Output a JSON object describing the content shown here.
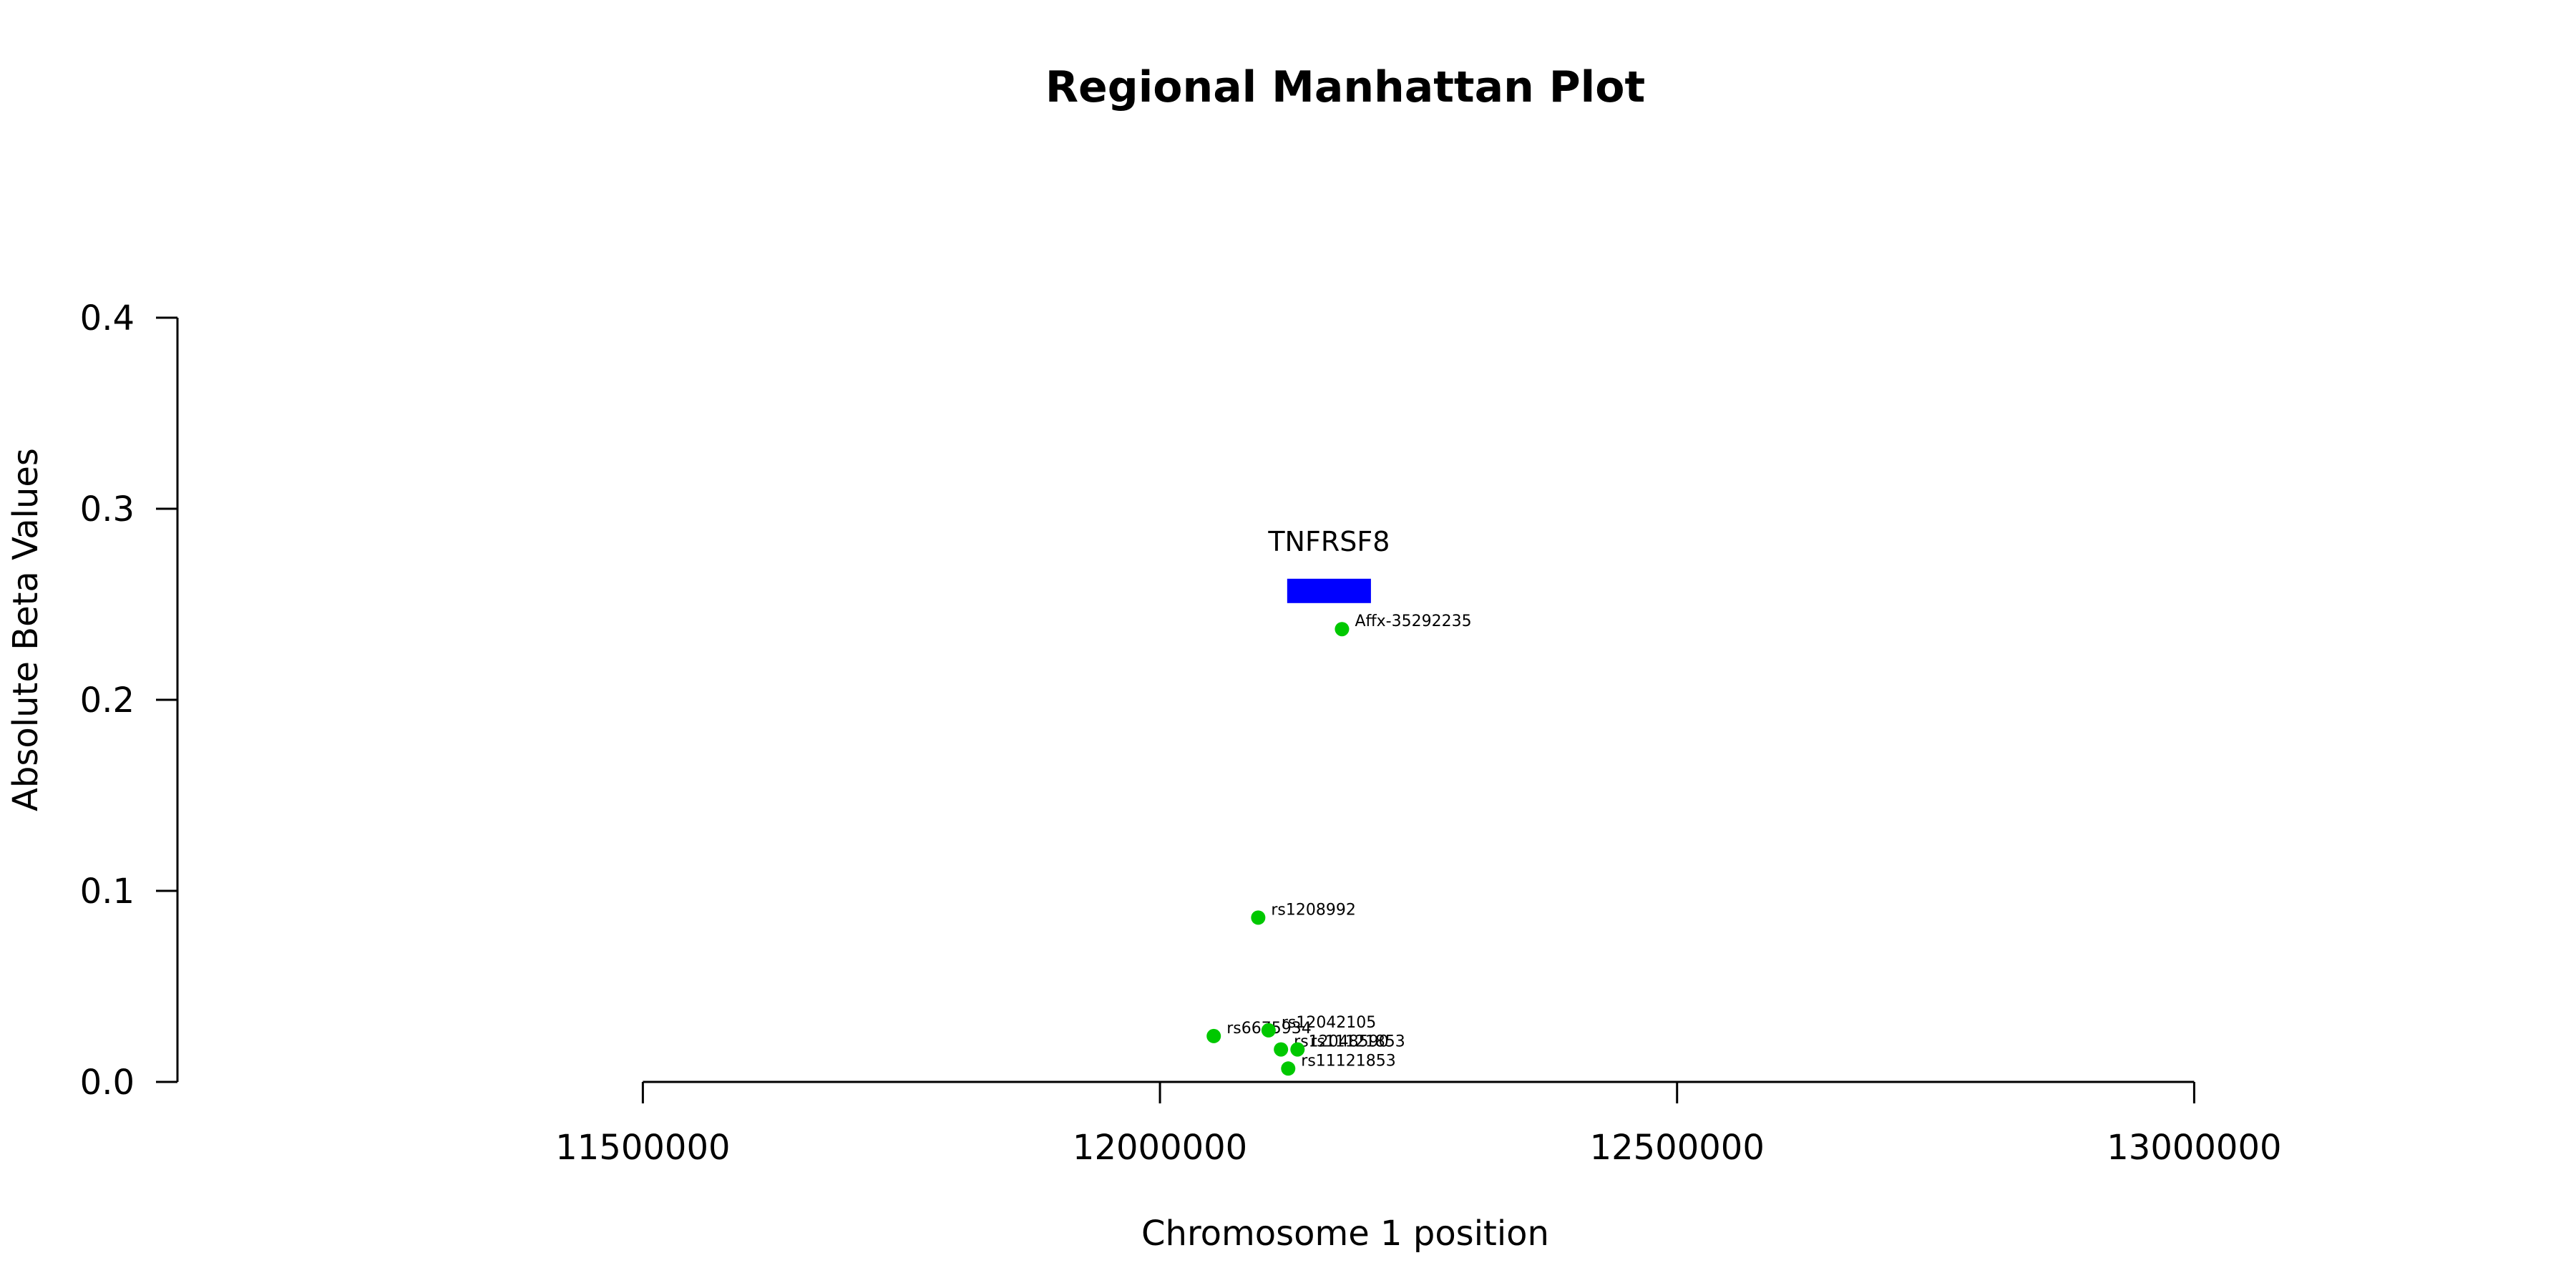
{
  "chart_data": {
    "type": "scatter",
    "title": "Regional Manhattan Plot",
    "xlabel": "Chromosome 1 position",
    "ylabel": "Absolute Beta Values",
    "xlim": [
      11050000,
      13300000
    ],
    "ylim": [
      0,
      0.4
    ],
    "x_ticks": [
      11500000,
      12000000,
      12500000,
      13000000
    ],
    "x_tick_labels": [
      "11500000",
      "12000000",
      "12500000",
      "13000000"
    ],
    "y_ticks": [
      0.0,
      0.1,
      0.2,
      0.3,
      0.4
    ],
    "y_tick_labels": [
      "0.0",
      "0.1",
      "0.2",
      "0.3",
      "0.4"
    ],
    "point_color": "#00c800",
    "gene_color": "#0000ff",
    "genes": [
      {
        "name": "TNFRSF8",
        "start": 12123000,
        "end": 12204000,
        "y": 0.257
      }
    ],
    "points": [
      {
        "label": "Affx-35292235",
        "x": 12176000,
        "y": 0.237
      },
      {
        "label": "rs1208992",
        "x": 12095000,
        "y": 0.086
      },
      {
        "label": "rs6675934",
        "x": 12052000,
        "y": 0.024
      },
      {
        "label": "rs12042105",
        "x": 12105000,
        "y": 0.027
      },
      {
        "label": "rs12048590",
        "x": 12117000,
        "y": 0.017
      },
      {
        "label": "rs11121853",
        "x": 12133000,
        "y": 0.017
      },
      {
        "label": "rs11121853",
        "x": 12124000,
        "y": 0.007
      }
    ]
  }
}
